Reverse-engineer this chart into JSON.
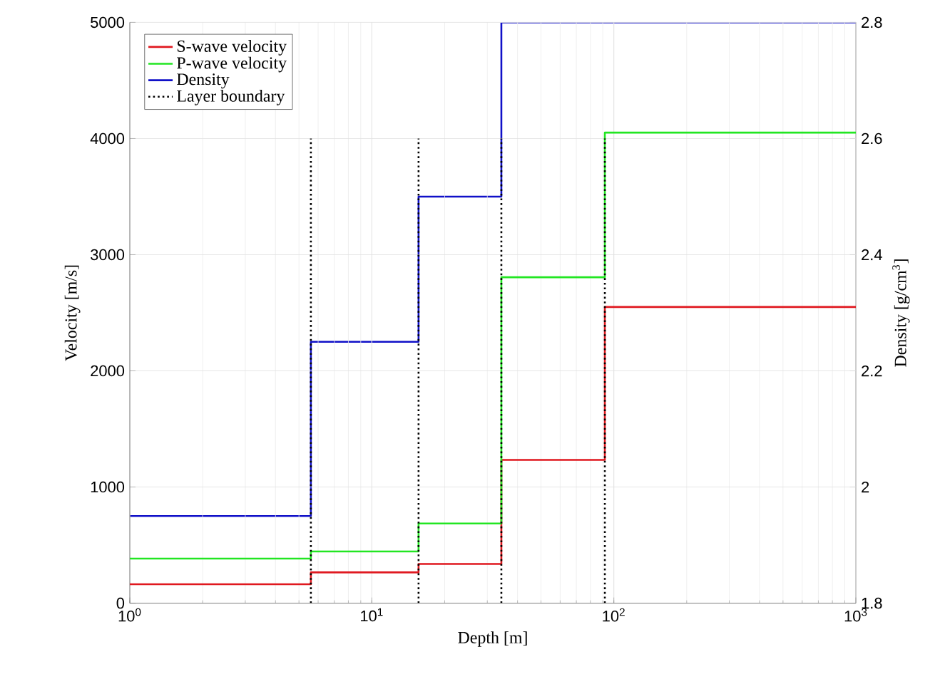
{
  "chart_data": {
    "type": "step",
    "xlabel": "Depth [m]",
    "ylabel": "Velocity [m/s]",
    "y2label": "Density [g/cm$^{3}$]",
    "log": "x",
    "grid": true,
    "legend": "top left",
    "xlim": [
      1,
      1000
    ],
    "xticks": [
      {
        "value": 1,
        "label": "10$^{0}$"
      },
      {
        "value": 10,
        "label": "10$^{1}$"
      },
      {
        "value": 100,
        "label": "10$^{2}$"
      },
      {
        "value": 1000,
        "label": "10$^{3}$"
      }
    ],
    "ylim": [
      0,
      5000
    ],
    "yticks": [
      0,
      1000,
      2000,
      3000,
      4000,
      5000
    ],
    "y2lim": [
      1.8,
      2.8
    ],
    "y2ticks": [
      1.8,
      2,
      2.2,
      2.4,
      2.6,
      2.8
    ],
    "series": [
      {
        "name": "S-wave velocity",
        "color": "#e0181f",
        "x": [
          1,
          5.6,
          15.6,
          34.3,
          91.8,
          1000
        ],
        "values": [
          163,
          265,
          338,
          1233,
          2550,
          2550
        ]
      },
      {
        "name": "P-wave velocity",
        "color": "#22e622",
        "x": [
          1,
          5.6,
          15.6,
          34.3,
          91.8,
          1000
        ],
        "values": [
          384,
          445,
          686,
          2806,
          4051,
          4051
        ]
      },
      {
        "name": "Density",
        "color": "#1010c8",
        "axis": "y2",
        "x": [
          1,
          5.6,
          15.6,
          34.3,
          91.8,
          1000
        ],
        "values": [
          1.95,
          2.25,
          2.5,
          2.8,
          2.8,
          2.8
        ]
      },
      {
        "name": "Layer boundary",
        "color": "#000000",
        "type": "line",
        "line_style": "dotted",
        "x": [
          5.6,
          5.6,
          null,
          15.6,
          15.6,
          null,
          34.3,
          34.3,
          null,
          91.8,
          91.8
        ],
        "values": [
          0,
          4000,
          null,
          0,
          4000,
          null,
          0,
          4000,
          null,
          0,
          4000
        ]
      }
    ]
  }
}
